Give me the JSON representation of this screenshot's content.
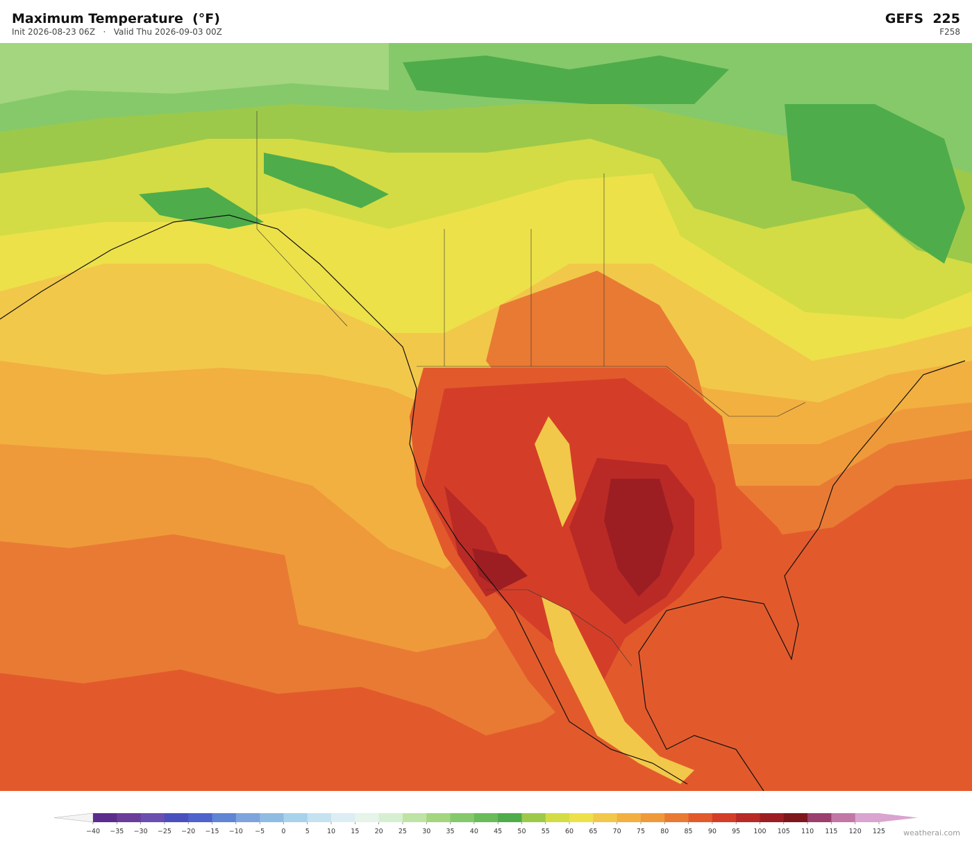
{
  "header": {
    "title": "Maximum Temperature  (°F)",
    "subtitle": "Init 2026-08-23 06Z   ·   Valid Thu 2026-09-03 00Z",
    "model": "GEFS  225",
    "forecast_hour": "F258"
  },
  "colorbar": {
    "ticks": [
      {
        "value": -40,
        "label": "−40"
      },
      {
        "value": -35,
        "label": "−35"
      },
      {
        "value": -30,
        "label": "−30"
      },
      {
        "value": -25,
        "label": "−25"
      },
      {
        "value": -20,
        "label": "−20"
      },
      {
        "value": -15,
        "label": "−15"
      },
      {
        "value": -10,
        "label": "−10"
      },
      {
        "value": -5,
        "label": "−5"
      },
      0,
      5,
      10,
      15,
      20,
      25,
      30,
      35,
      40,
      45,
      50,
      55,
      60,
      65,
      70,
      75,
      80,
      85,
      90,
      95,
      100,
      105,
      110,
      115,
      120,
      125
    ],
    "colors": [
      "#5a2d8c",
      "#6a3d9a",
      "#6a4fb0",
      "#4a4fc0",
      "#4f63cc",
      "#5f85d4",
      "#7fa3dc",
      "#8fbce2",
      "#a8d2ec",
      "#c4e2f0",
      "#dcedf3",
      "#e6f4ea",
      "#d6efd0",
      "#bfe3a4",
      "#a3d67f",
      "#86c96a",
      "#6abb5a",
      "#4fac4a",
      "#9dc94a",
      "#d3dc44",
      "#ede14a",
      "#f2c84a",
      "#f2b040",
      "#ef9a3a",
      "#e97a34",
      "#e25a2c",
      "#d43e28",
      "#b92a26",
      "#9c1e22",
      "#7e161c",
      "#9b3f6e",
      "#c277a6",
      "#d9a4cf"
    ],
    "under_color": "#f4f4f4",
    "over_color": "#d9a4cf"
  },
  "watermark": "weatherai.com"
}
